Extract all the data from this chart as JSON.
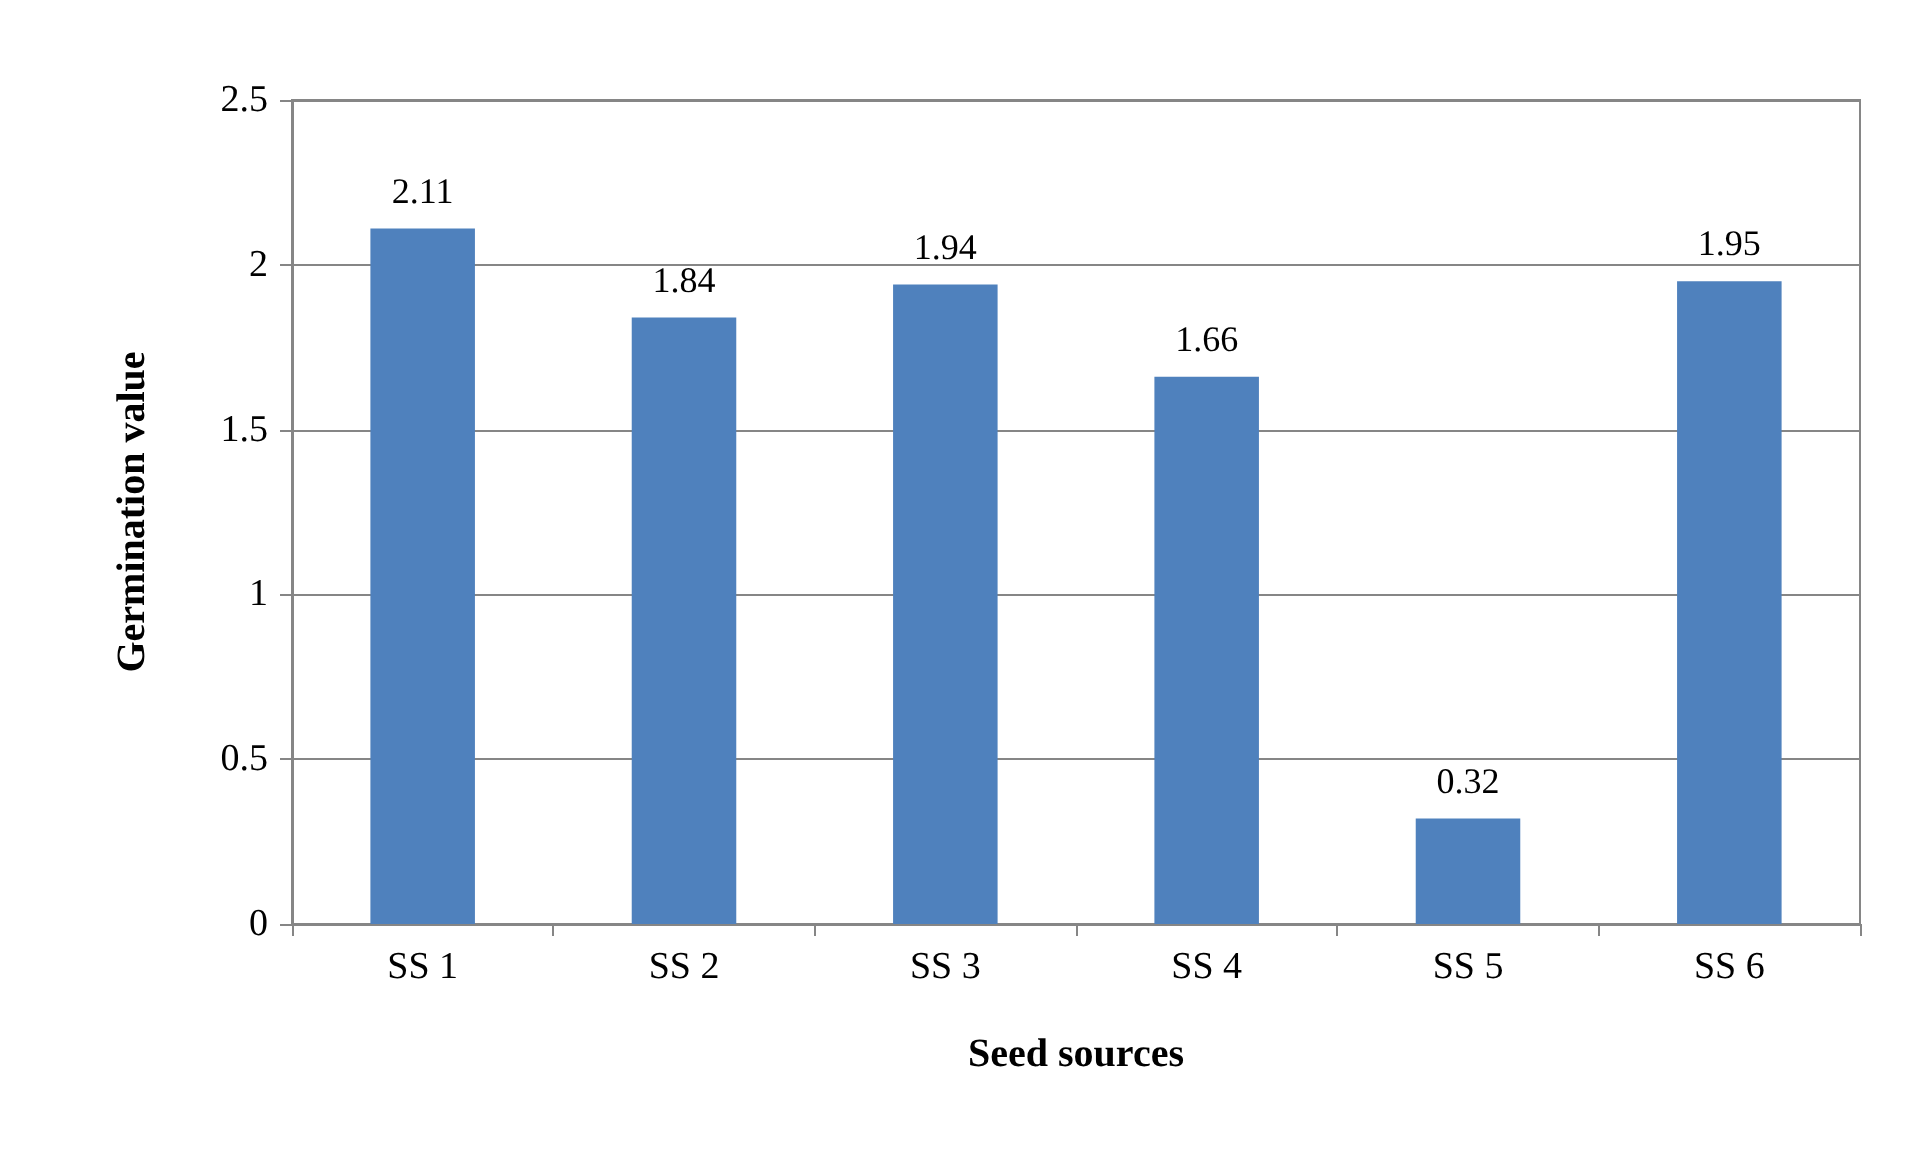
{
  "chart_data": {
    "type": "bar",
    "xlabel": "Seed sources",
    "ylabel": "Germination value",
    "categories": [
      "SS 1",
      "SS 2",
      "SS 3",
      "SS 4",
      "SS 5",
      "SS 6"
    ],
    "values": [
      2.11,
      1.84,
      1.94,
      1.66,
      0.32,
      1.95
    ],
    "color": "#4f81bd",
    "ylim": [
      0,
      2.5
    ],
    "yticks": [
      0,
      0.5,
      1,
      1.5,
      2,
      2.5
    ],
    "grid": "y",
    "data_labels": true
  }
}
